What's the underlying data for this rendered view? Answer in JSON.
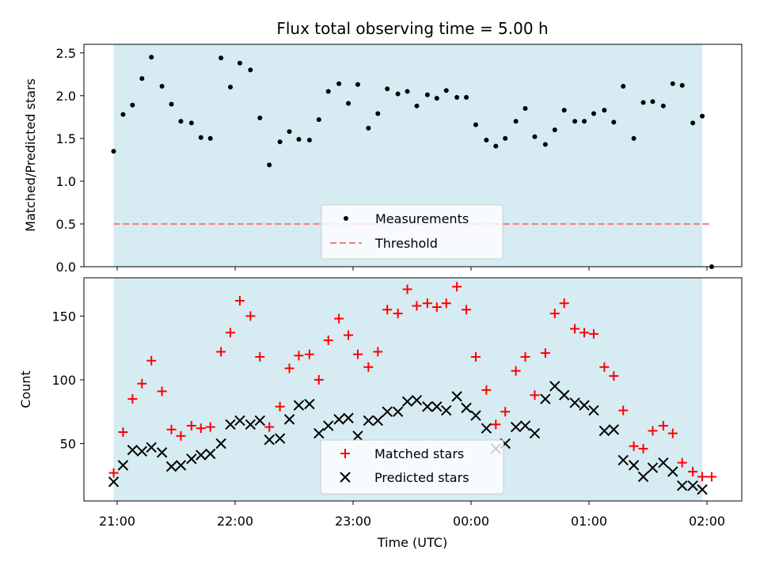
{
  "chart_data": [
    {
      "type": "scatter",
      "title": "Flux total observing time = 5.00 h",
      "xlabel": "",
      "ylabel": "Matched/Predicted stars",
      "ylim": [
        0,
        2.6
      ],
      "yticks": [
        "0.0",
        "0.5",
        "1.0",
        "1.5",
        "2.0",
        "2.5"
      ],
      "ytick_values": [
        0,
        0.5,
        1.0,
        1.5,
        2.0,
        2.5
      ],
      "shaded_region_hours": [
        -0.03,
        4.96
      ],
      "shade_color": "#add8e6",
      "legend": {
        "location": "lower center",
        "entries": [
          "Measurements",
          "Threshold"
        ]
      },
      "threshold": {
        "name": "Threshold",
        "value": 0.5,
        "color": "#f08080",
        "style": "dashed"
      },
      "series": [
        {
          "name": "Measurements",
          "color": "#000000",
          "marker": "dot",
          "x_hours": [
            -0.03,
            0.05,
            0.13,
            0.21,
            0.29,
            0.38,
            0.46,
            0.54,
            0.63,
            0.71,
            0.79,
            0.88,
            0.96,
            1.04,
            1.13,
            1.21,
            1.29,
            1.38,
            1.46,
            1.54,
            1.63,
            1.71,
            1.79,
            1.88,
            1.96,
            2.04,
            2.13,
            2.21,
            2.29,
            2.38,
            2.46,
            2.54,
            2.63,
            2.71,
            2.79,
            2.88,
            2.96,
            3.04,
            3.13,
            3.21,
            3.29,
            3.38,
            3.46,
            3.54,
            3.63,
            3.71,
            3.79,
            3.88,
            3.96,
            4.04,
            4.13,
            4.21,
            4.29,
            4.38,
            4.46,
            4.54,
            4.63,
            4.71,
            4.79,
            4.88,
            4.96,
            5.04
          ],
          "y": [
            1.35,
            1.78,
            1.89,
            2.2,
            2.45,
            2.11,
            1.9,
            1.7,
            1.68,
            1.51,
            1.5,
            2.44,
            2.1,
            2.38,
            2.3,
            1.74,
            1.19,
            1.46,
            1.58,
            1.49,
            1.48,
            1.72,
            2.05,
            2.14,
            1.91,
            2.13,
            1.62,
            1.79,
            2.08,
            2.02,
            2.05,
            1.88,
            2.01,
            1.97,
            2.06,
            1.98,
            1.98,
            1.66,
            1.48,
            1.41,
            1.5,
            1.7,
            1.85,
            1.52,
            1.43,
            1.6,
            1.83,
            1.7,
            1.7,
            1.79,
            1.83,
            1.69,
            2.11,
            1.5,
            1.92,
            1.93,
            1.88,
            2.14,
            2.12,
            1.68,
            1.76,
            0.0
          ]
        }
      ]
    },
    {
      "type": "scatter",
      "title": "",
      "xlabel": "Time (UTC)",
      "ylabel": "Count",
      "ylim": [
        5,
        180
      ],
      "yticks": [
        "50",
        "100",
        "150"
      ],
      "ytick_values": [
        50,
        100,
        150
      ],
      "xticks": [
        "21:00",
        "22:00",
        "23:00",
        "00:00",
        "01:00",
        "02:00"
      ],
      "xtick_hours": [
        0,
        1,
        2,
        3,
        4,
        5
      ],
      "legend": {
        "location": "lower center",
        "entries": [
          "Matched stars",
          "Predicted stars"
        ]
      },
      "series": [
        {
          "name": "Matched stars",
          "color": "#ff0000",
          "marker": "plus",
          "x_hours": [
            -0.03,
            0.05,
            0.13,
            0.21,
            0.29,
            0.38,
            0.46,
            0.54,
            0.63,
            0.71,
            0.79,
            0.88,
            0.96,
            1.04,
            1.13,
            1.21,
            1.29,
            1.38,
            1.46,
            1.54,
            1.63,
            1.71,
            1.79,
            1.88,
            1.96,
            2.04,
            2.13,
            2.21,
            2.29,
            2.38,
            2.46,
            2.54,
            2.63,
            2.71,
            2.79,
            2.88,
            2.96,
            3.04,
            3.13,
            3.21,
            3.29,
            3.38,
            3.46,
            3.54,
            3.63,
            3.71,
            3.79,
            3.88,
            3.96,
            4.04,
            4.13,
            4.21,
            4.29,
            4.38,
            4.46,
            4.54,
            4.63,
            4.71,
            4.79,
            4.88,
            4.96,
            5.04
          ],
          "y": [
            27,
            59,
            85,
            97,
            115,
            91,
            61,
            56,
            64,
            62,
            63,
            122,
            137,
            162,
            150,
            118,
            63,
            79,
            109,
            119,
            120,
            100,
            131,
            148,
            135,
            120,
            110,
            122,
            155,
            152,
            171,
            158,
            160,
            157,
            160,
            173,
            155,
            118,
            92,
            65,
            75,
            107,
            118,
            88,
            121,
            152,
            160,
            140,
            137,
            136,
            110,
            103,
            76,
            48,
            46,
            60,
            64,
            58,
            35,
            28,
            24,
            24
          ]
        },
        {
          "name": "Predicted stars",
          "color": "#000000",
          "marker": "x",
          "x_hours": [
            -0.03,
            0.05,
            0.13,
            0.21,
            0.29,
            0.38,
            0.46,
            0.54,
            0.63,
            0.71,
            0.79,
            0.88,
            0.96,
            1.04,
            1.13,
            1.21,
            1.29,
            1.38,
            1.46,
            1.54,
            1.63,
            1.71,
            1.79,
            1.88,
            1.96,
            2.04,
            2.13,
            2.21,
            2.29,
            2.38,
            2.46,
            2.54,
            2.63,
            2.71,
            2.79,
            2.88,
            2.96,
            3.04,
            3.13,
            3.21,
            3.29,
            3.38,
            3.46,
            3.54,
            3.63,
            3.71,
            3.79,
            3.88,
            3.96,
            4.04,
            4.13,
            4.21,
            4.29,
            4.38,
            4.46,
            4.54,
            4.63,
            4.71,
            4.79,
            4.88,
            4.96
          ],
          "y": [
            20,
            33,
            45,
            44,
            47,
            43,
            32,
            33,
            38,
            41,
            42,
            50,
            65,
            68,
            65,
            68,
            53,
            54,
            69,
            80,
            81,
            58,
            64,
            69,
            70,
            56,
            68,
            68,
            75,
            75,
            83,
            84,
            79,
            79,
            76,
            87,
            78,
            72,
            62,
            46,
            50,
            63,
            64,
            58,
            85,
            95,
            88,
            82,
            80,
            76,
            60,
            61,
            37,
            33,
            24,
            31,
            35,
            28,
            17,
            17,
            14
          ]
        }
      ]
    }
  ]
}
